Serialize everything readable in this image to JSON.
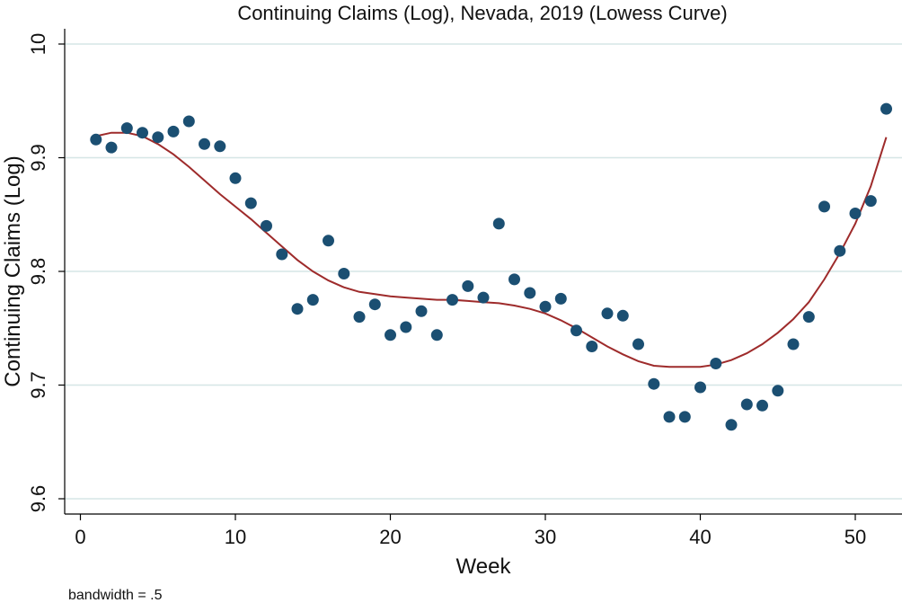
{
  "chart_data": {
    "type": "scatter",
    "title": "Continuing Claims (Log), Nevada, 2019 (Lowess Curve)",
    "xlabel": "Week",
    "ylabel": "Continuing Claims (Log)",
    "note": "bandwidth = .5",
    "xlim": [
      0,
      52
    ],
    "ylim": [
      9.6,
      10.0
    ],
    "xticks": [
      "0",
      "10",
      "20",
      "30",
      "40",
      "50"
    ],
    "yticks": [
      "9.6",
      "9.7",
      "9.8",
      "9.9",
      "10"
    ],
    "grid": true,
    "colors": {
      "points": "#1b4f72",
      "curve": "#9e2b2b",
      "grid": "#d6e6e6"
    },
    "points": {
      "x": [
        1,
        2,
        3,
        4,
        5,
        6,
        7,
        8,
        9,
        10,
        11,
        12,
        13,
        14,
        15,
        16,
        17,
        18,
        19,
        20,
        21,
        22,
        23,
        24,
        25,
        26,
        27,
        28,
        29,
        30,
        31,
        32,
        33,
        34,
        35,
        36,
        37,
        38,
        39,
        40,
        41,
        42,
        43,
        44,
        45,
        46,
        47,
        48,
        49,
        50,
        51,
        52
      ],
      "y": [
        9.916,
        9.909,
        9.926,
        9.922,
        9.918,
        9.923,
        9.932,
        9.912,
        9.91,
        9.882,
        9.86,
        9.84,
        9.815,
        9.767,
        9.775,
        9.827,
        9.798,
        9.76,
        9.771,
        9.744,
        9.751,
        9.765,
        9.744,
        9.775,
        9.787,
        9.777,
        9.842,
        9.793,
        9.781,
        9.769,
        9.776,
        9.748,
        9.734,
        9.763,
        9.761,
        9.736,
        9.701,
        9.672,
        9.672,
        9.698,
        9.719,
        9.665,
        9.683,
        9.682,
        9.695,
        9.736,
        9.76,
        9.857,
        9.818,
        9.851,
        9.862,
        9.943
      ]
    },
    "lowess": {
      "x": [
        1,
        2,
        3,
        4,
        5,
        6,
        7,
        8,
        9,
        10,
        11,
        12,
        13,
        14,
        15,
        16,
        17,
        18,
        19,
        20,
        21,
        22,
        23,
        24,
        25,
        26,
        27,
        28,
        29,
        30,
        31,
        32,
        33,
        34,
        35,
        36,
        37,
        38,
        39,
        40,
        41,
        42,
        43,
        44,
        45,
        46,
        47,
        48,
        49,
        50,
        51,
        52
      ],
      "y": [
        9.919,
        9.922,
        9.922,
        9.919,
        9.912,
        9.903,
        9.892,
        9.88,
        9.868,
        9.857,
        9.846,
        9.834,
        9.822,
        9.81,
        9.8,
        9.792,
        9.786,
        9.782,
        9.78,
        9.778,
        9.777,
        9.776,
        9.775,
        9.775,
        9.774,
        9.773,
        9.772,
        9.77,
        9.767,
        9.763,
        9.757,
        9.75,
        9.742,
        9.734,
        9.727,
        9.721,
        9.717,
        9.716,
        9.716,
        9.716,
        9.718,
        9.722,
        9.728,
        9.736,
        9.746,
        9.758,
        9.773,
        9.793,
        9.816,
        9.842,
        9.875,
        9.918
      ]
    }
  }
}
